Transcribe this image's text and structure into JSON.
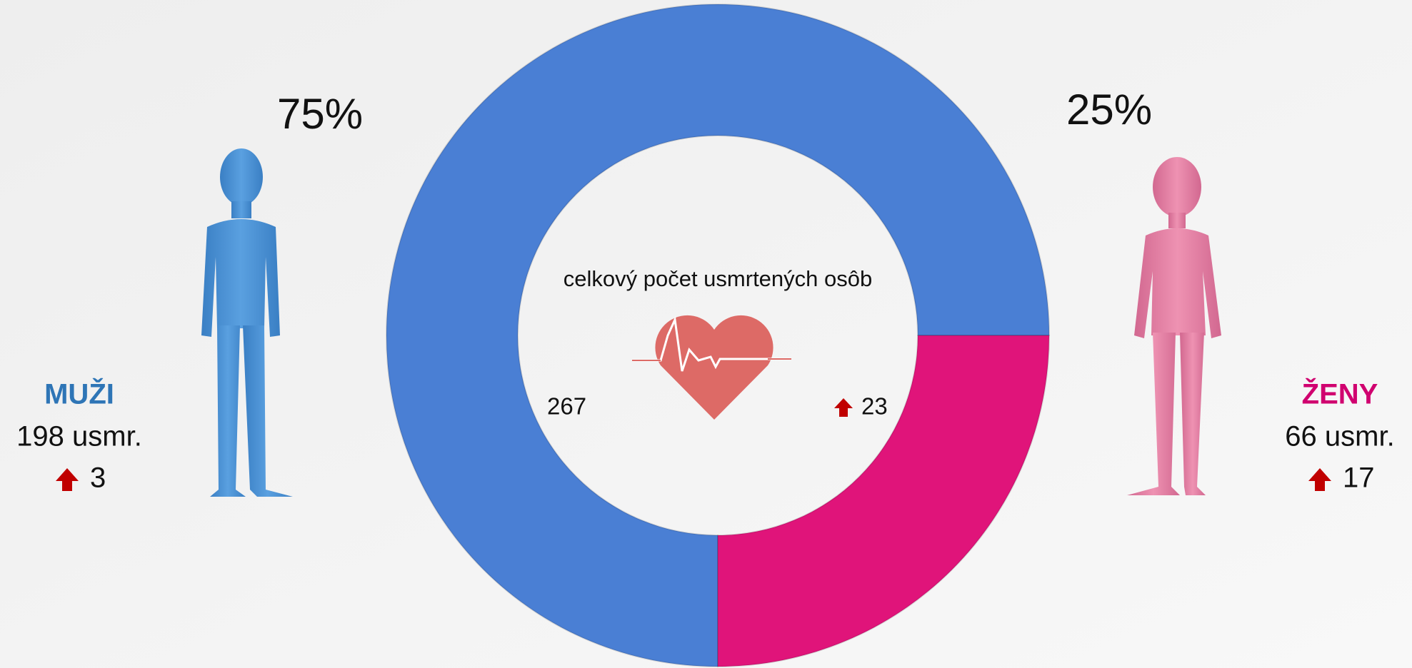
{
  "chart_data": {
    "type": "pie",
    "donut": true,
    "categories": [
      "MUŽI",
      "ŽENY"
    ],
    "values": [
      75,
      25
    ],
    "value_labels": [
      "75%",
      "25%"
    ],
    "colors": [
      "#4a7fd4",
      "#e0147a"
    ],
    "category_colors": [
      "#2e75b6",
      "#d0006f"
    ],
    "count_labels": [
      "198 usmr.",
      "66 usmr."
    ],
    "changes": [
      3,
      17
    ],
    "center": {
      "title": "celkový počet usmrtených osôb",
      "total": 267,
      "change": 23
    }
  }
}
